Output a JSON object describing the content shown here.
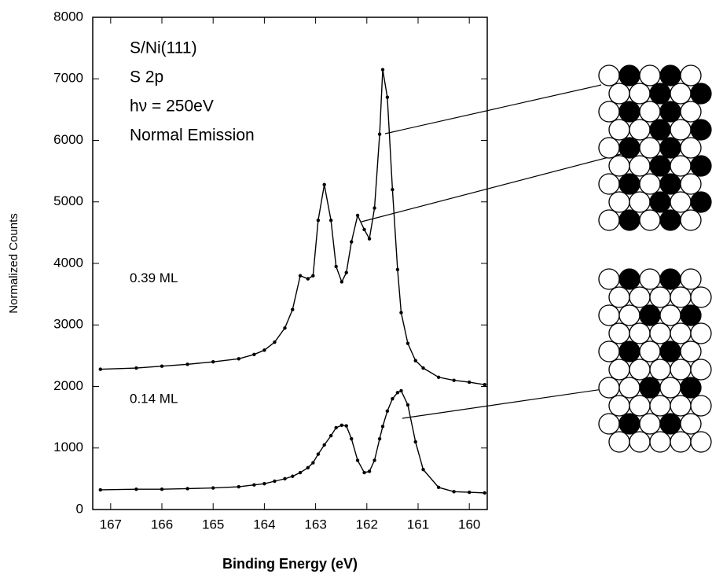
{
  "chart_data": {
    "type": "line",
    "annotations": [
      "S/Ni(111)",
      "S 2p",
      "hν = 250eV",
      "Normal Emission"
    ],
    "x_label": "Binding Energy (eV)",
    "y_label": "Normalized Counts",
    "x": [
      167.2,
      166.5,
      166,
      165.5,
      165,
      164.5,
      164.2,
      164,
      163.8,
      163.6,
      163.45,
      163.3,
      163.15,
      163.05,
      162.95,
      162.83,
      162.7,
      162.6,
      162.49,
      162.4,
      162.3,
      162.18,
      162.05,
      161.95,
      161.85,
      161.75,
      161.69,
      161.6,
      161.5,
      161.4,
      161.33,
      161.2,
      161.05,
      160.9,
      160.6,
      160.3,
      160,
      159.7
    ],
    "series": [
      {
        "name": "0.39 ML",
        "color": "#000000",
        "values": [
          2280,
          2300,
          2330,
          2360,
          2400,
          2450,
          2520,
          2590,
          2720,
          2950,
          3250,
          3800,
          3750,
          3800,
          4700,
          5280,
          4700,
          3950,
          3700,
          3850,
          4350,
          4780,
          4550,
          4400,
          4900,
          6100,
          7150,
          6700,
          5200,
          3900,
          3200,
          2700,
          2420,
          2300,
          2150,
          2100,
          2070,
          2030
        ]
      },
      {
        "name": "0.14 ML",
        "color": "#000000",
        "values": [
          320,
          330,
          330,
          340,
          350,
          370,
          400,
          420,
          460,
          500,
          540,
          600,
          680,
          760,
          900,
          1050,
          1200,
          1330,
          1370,
          1360,
          1150,
          800,
          600,
          620,
          800,
          1150,
          1350,
          1600,
          1800,
          1900,
          1930,
          1700,
          1100,
          650,
          360,
          290,
          280,
          270
        ]
      }
    ],
    "xlim": [
      167.35,
      159.65
    ],
    "xticks": [
      167,
      166,
      165,
      164,
      163,
      162,
      161,
      160
    ],
    "ylim": [
      0,
      8000
    ],
    "yticks": [
      0,
      1000,
      2000,
      3000,
      4000,
      5000,
      6000,
      7000,
      8000
    ],
    "grid": false
  }
}
